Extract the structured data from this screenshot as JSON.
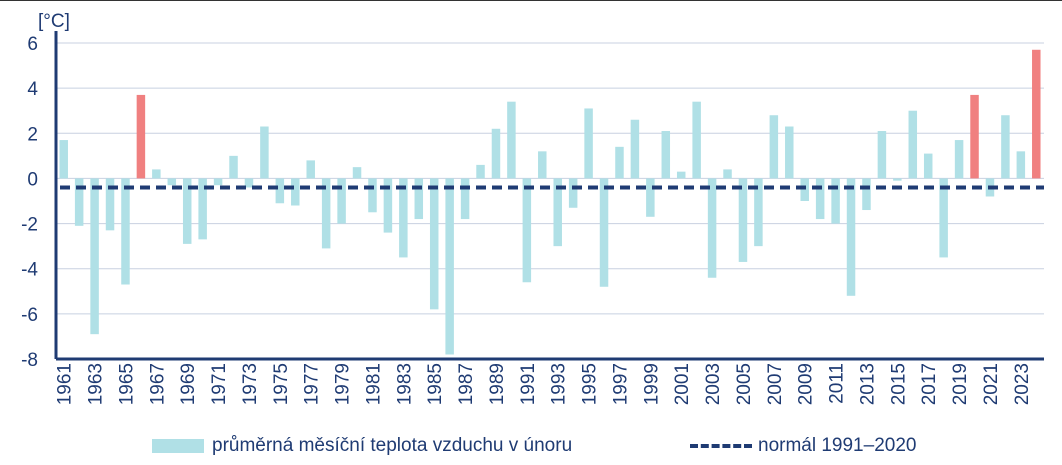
{
  "chart_data": {
    "type": "bar",
    "ylabel": "[°C]",
    "ylim": [
      -8,
      6
    ],
    "yticks": [
      6,
      4,
      2,
      0,
      -2,
      -4,
      -6,
      -8
    ],
    "grid": true,
    "legend_placement": "bottom",
    "colors": {
      "bar": "#b0e0e6",
      "highlight": "#f08080",
      "normal": "#1f3b73",
      "axis": "#1f3b73",
      "grid": "#c8d0e0"
    },
    "categories": [
      "1961",
      "1962",
      "1963",
      "1964",
      "1965",
      "1966",
      "1967",
      "1968",
      "1969",
      "1970",
      "1971",
      "1972",
      "1973",
      "1974",
      "1975",
      "1976",
      "1977",
      "1978",
      "1979",
      "1980",
      "1981",
      "1982",
      "1983",
      "1984",
      "1985",
      "1986",
      "1987",
      "1988",
      "1989",
      "1990",
      "1991",
      "1992",
      "1993",
      "1994",
      "1995",
      "1996",
      "1997",
      "1998",
      "1999",
      "2000",
      "2001",
      "2002",
      "2003",
      "2004",
      "2005",
      "2006",
      "2007",
      "2008",
      "2009",
      "2010",
      "2011",
      "2012",
      "2013",
      "2014",
      "2015",
      "2016",
      "2017",
      "2018",
      "2019",
      "2020",
      "2021",
      "2022",
      "2023",
      "2024"
    ],
    "x_tick_labels": [
      "1961",
      "",
      "1963",
      "",
      "1965",
      "",
      "1967",
      "",
      "1969",
      "",
      "1971",
      "",
      "1973",
      "",
      "1975",
      "",
      "1977",
      "",
      "1979",
      "",
      "1981",
      "",
      "1983",
      "",
      "1985",
      "",
      "1987",
      "",
      "1989",
      "",
      "1991",
      "",
      "1993",
      "",
      "1995",
      "",
      "1997",
      "",
      "1999",
      "",
      "2001",
      "",
      "2003",
      "",
      "2005",
      "",
      "2007",
      "",
      "2009",
      "",
      "2011",
      "",
      "2013",
      "",
      "2015",
      "",
      "2017",
      "",
      "2019",
      "",
      "2021",
      "",
      "2023",
      ""
    ],
    "series": [
      {
        "name": "průměrná měsíční teplota vzduchu v únoru",
        "values": [
          1.7,
          -2.1,
          -6.9,
          -2.3,
          -4.7,
          3.7,
          0.4,
          -0.3,
          -2.9,
          -2.7,
          -0.3,
          1.0,
          -0.4,
          2.3,
          -1.1,
          -1.2,
          0.8,
          -3.1,
          -2.0,
          0.5,
          -1.5,
          -2.4,
          -3.5,
          -1.8,
          -5.8,
          -7.8,
          -1.8,
          0.6,
          2.2,
          3.4,
          -4.6,
          1.2,
          -3.0,
          -1.3,
          3.1,
          -4.8,
          1.4,
          2.6,
          -1.7,
          2.1,
          0.3,
          3.4,
          -4.4,
          0.4,
          -3.7,
          -3.0,
          2.8,
          2.3,
          -1.0,
          -1.8,
          -2.0,
          -5.2,
          -1.4,
          2.1,
          -0.1,
          3.0,
          1.1,
          -3.5,
          1.7,
          3.7,
          -0.8,
          2.8,
          1.2,
          5.7
        ],
        "highlight": [
          false,
          false,
          false,
          false,
          false,
          true,
          false,
          false,
          false,
          false,
          false,
          false,
          false,
          false,
          false,
          false,
          false,
          false,
          false,
          false,
          false,
          false,
          false,
          false,
          false,
          false,
          false,
          false,
          false,
          false,
          false,
          false,
          false,
          false,
          false,
          false,
          false,
          false,
          false,
          false,
          false,
          false,
          false,
          false,
          false,
          false,
          false,
          false,
          false,
          false,
          false,
          false,
          false,
          false,
          false,
          false,
          false,
          false,
          false,
          true,
          false,
          false,
          false,
          true
        ]
      }
    ],
    "normal": {
      "name": "normál 1991–2020",
      "value": -0.4
    }
  }
}
